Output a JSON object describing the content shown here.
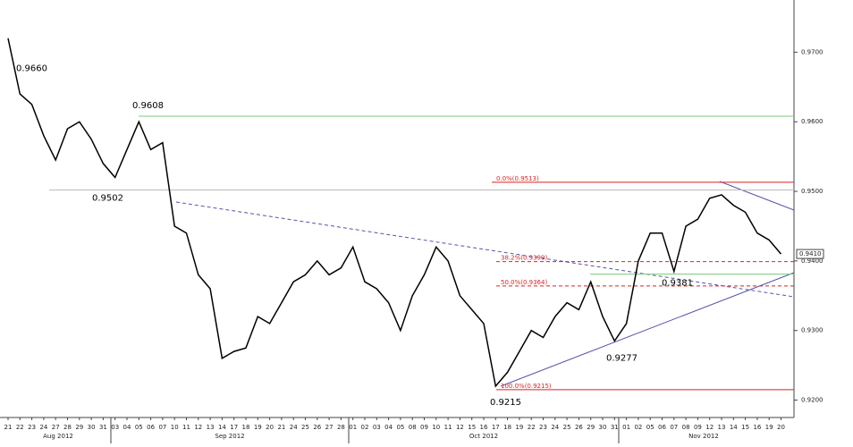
{
  "chart_data": {
    "type": "line",
    "color": "#000000",
    "categories": [
      "21",
      "22",
      "23",
      "24",
      "27",
      "28",
      "29",
      "30",
      "31",
      "03",
      "04",
      "05",
      "06",
      "07",
      "10",
      "11",
      "12",
      "13",
      "14",
      "17",
      "18",
      "19",
      "20",
      "21",
      "24",
      "25",
      "26",
      "27",
      "28",
      "01",
      "02",
      "03",
      "04",
      "05",
      "08",
      "09",
      "10",
      "11",
      "12",
      "15",
      "16",
      "17",
      "18",
      "19",
      "22",
      "23",
      "24",
      "25",
      "26",
      "29",
      "30",
      "31",
      "01",
      "02",
      "05",
      "06",
      "07",
      "08",
      "09",
      "12",
      "13",
      "14",
      "15",
      "16",
      "19",
      "20"
    ],
    "months": [
      "Aug 2012",
      "Sep 2012",
      "Oct 2012",
      "Nov 2012"
    ],
    "series": [
      {
        "values": [
          0.972,
          0.964,
          0.9625,
          0.958,
          0.9545,
          0.959,
          0.96,
          0.9575,
          0.954,
          0.952,
          0.956,
          0.96,
          0.956,
          0.957,
          0.945,
          0.944,
          0.938,
          0.936,
          0.926,
          0.927,
          0.9275,
          0.932,
          0.931,
          0.934,
          0.937,
          0.938,
          0.94,
          0.938,
          0.939,
          0.942,
          0.937,
          0.936,
          0.934,
          0.93,
          0.935,
          0.938,
          0.942,
          0.94,
          0.935,
          0.933,
          0.931,
          0.922,
          0.924,
          0.927,
          0.93,
          0.929,
          0.932,
          0.934,
          0.933,
          0.937,
          0.932,
          0.9285,
          0.931,
          0.94,
          0.944,
          0.944,
          0.9385,
          0.945,
          0.946,
          0.949,
          0.9495,
          0.948,
          0.947,
          0.944,
          0.943,
          0.941
        ]
      }
    ],
    "ylim": [
      0.9175,
      0.9775
    ],
    "yticks": [
      {
        "value": 0.92,
        "label": "0.9200"
      },
      {
        "value": 0.93,
        "label": "0.9300"
      },
      {
        "value": 0.94,
        "label": "0.9400"
      },
      {
        "value": 0.95,
        "label": "0.9500"
      },
      {
        "value": 0.96,
        "label": "0.9600"
      },
      {
        "value": 0.97,
        "label": "0.9700"
      }
    ],
    "annotations": [
      {
        "value": 0.966,
        "label": "0.9660"
      },
      {
        "value": 0.9608,
        "label": "0.9608"
      },
      {
        "value": 0.9502,
        "label": "0.9502"
      },
      {
        "value": 0.9215,
        "label": "0.9215"
      },
      {
        "value": 0.9277,
        "label": "0.9277"
      },
      {
        "value": 0.9381,
        "label": "0.9381"
      }
    ],
    "levels": [
      {
        "value": 0.9608,
        "color": "#7c7"
      },
      {
        "value": 0.9502,
        "color": "#bbb"
      },
      {
        "value": 0.9513,
        "label": "0.0%(0.9513)",
        "color": "#d22"
      },
      {
        "value": 0.9399,
        "label": "38.2%(0.9399)",
        "color": "#d22",
        "dashed": true
      },
      {
        "value": 0.9364,
        "label": "50.0%(0.9364)",
        "color": "#d22",
        "dashed": true
      },
      {
        "value": 0.9215,
        "label": "100.0%(0.9215)",
        "color": "#d22"
      },
      {
        "value": 0.9381,
        "color": "#7c7"
      }
    ],
    "last": {
      "value": 0.941,
      "label": "0.9410"
    }
  }
}
